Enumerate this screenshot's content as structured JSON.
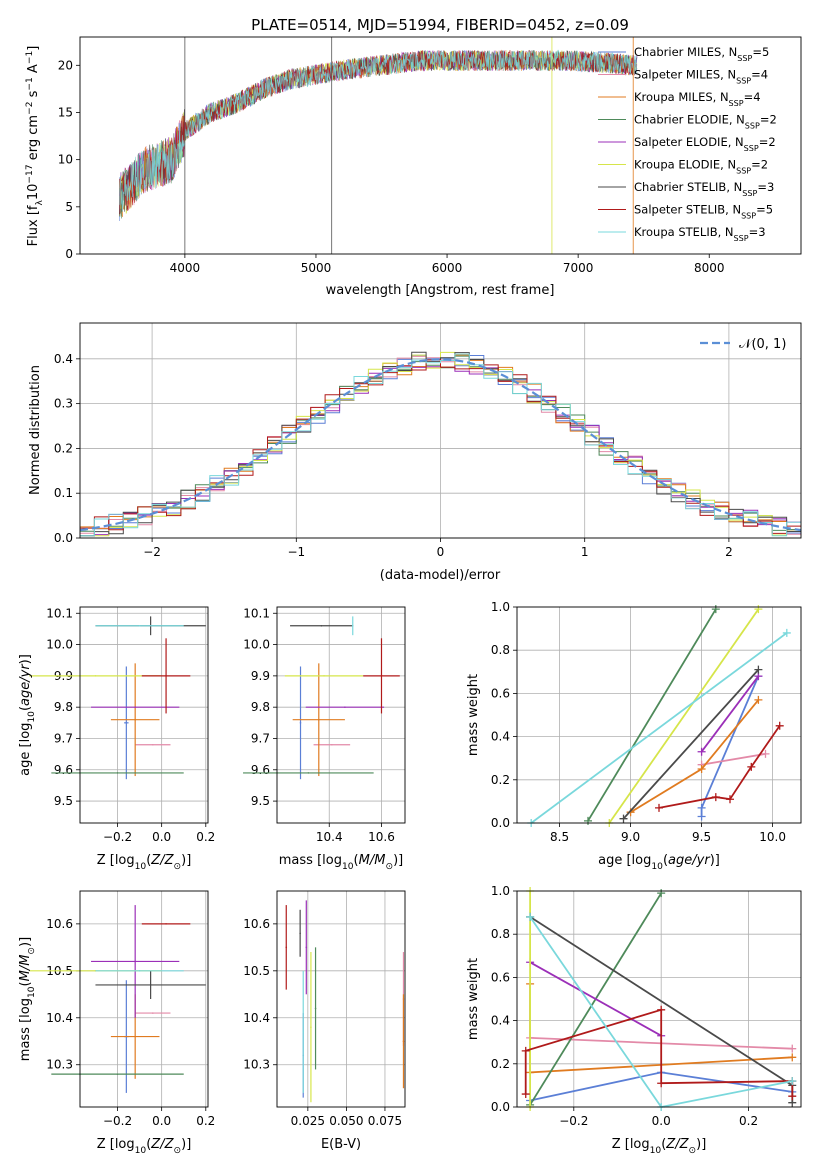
{
  "title": "PLATE=0514, MJD=51994, FIBERID=0452, z=0.09",
  "series": [
    {
      "name": "Chabrier MILES, N_SSP=5",
      "color": "#5b7fd6"
    },
    {
      "name": "Salpeter MILES, N_SSP=4",
      "color": "#e38aa8"
    },
    {
      "name": "Kroupa MILES, N_SSP=4",
      "color": "#e07b20"
    },
    {
      "name": "Chabrier ELODIE, N_SSP=2",
      "color": "#4e8a5a"
    },
    {
      "name": "Salpeter ELODIE, N_SSP=2",
      "color": "#9b2fb8"
    },
    {
      "name": "Kroupa ELODIE, N_SSP=2",
      "color": "#d6e54a"
    },
    {
      "name": "Chabrier STELIB, N_SSP=3",
      "color": "#4a4a4a"
    },
    {
      "name": "Salpeter STELIB, N_SSP=5",
      "color": "#b01a1a"
    },
    {
      "name": "Kroupa STELIB, N_SSP=3",
      "color": "#7ad8dc"
    }
  ],
  "chart_data": [
    {
      "type": "line",
      "panel": "spectrum",
      "xlabel": "wavelength [Angstrom, rest frame]",
      "ylabel": "Flux [fλ10^-17 erg cm^-2 s^-1 A^-1]",
      "xlim": [
        3200,
        8700
      ],
      "ylim": [
        0,
        23
      ],
      "xticks": [
        "4000",
        "5000",
        "6000",
        "7000",
        "8000"
      ],
      "yticks": [
        "0",
        "5",
        "10",
        "15",
        "20"
      ],
      "x": [
        3500,
        3700,
        3900,
        4000,
        4200,
        4400,
        4600,
        4800,
        5000,
        5200,
        5500,
        5800,
        6000,
        6300,
        6600,
        6900,
        7200,
        7400
      ],
      "y": [
        6,
        9,
        10,
        13,
        15,
        16,
        17.5,
        18.5,
        19,
        19.5,
        20,
        20.5,
        20.5,
        20.5,
        20.5,
        20.5,
        20.3,
        20
      ],
      "spikes_x": [
        4000,
        5120,
        6800,
        7420
      ],
      "legend_position": "upper right",
      "grid": false
    },
    {
      "type": "bar",
      "panel": "residual-histogram",
      "xlabel": "(data-model)/error",
      "ylabel": "Normed distribution",
      "xlim": [
        -2.5,
        2.5
      ],
      "ylim": [
        0,
        0.48
      ],
      "xticks": [
        "−2",
        "−1",
        "0",
        "1",
        "2"
      ],
      "yticks": [
        "0.0",
        "0.1",
        "0.2",
        "0.3",
        "0.4"
      ],
      "bin_edges_start": -2.5,
      "bin_width": 0.1,
      "reference_curve": "𝒩(0, 1)",
      "grid": true
    },
    {
      "type": "scatter",
      "panel": "age-vs-Z",
      "xlabel": "Z [log10(Z/Z⊙)]",
      "ylabel": "age [log10(age/yr)]",
      "xlim": [
        -0.37,
        0.21
      ],
      "ylim": [
        9.43,
        10.12
      ],
      "xticks": [
        "−0.2",
        "0.0",
        "0.2"
      ],
      "yticks": [
        "9.5",
        "9.6",
        "9.7",
        "9.8",
        "9.9",
        "10.0",
        "10.1"
      ],
      "points": [
        {
          "x": -0.16,
          "xerr": 0.01,
          "y": 9.75,
          "yerr": 0.18
        },
        {
          "x": -0.04,
          "xerr": 0.08,
          "y": 9.68,
          "yerr": 0.0
        },
        {
          "x": -0.12,
          "xerr": 0.11,
          "y": 9.76,
          "yerr": 0.18
        },
        {
          "x": -0.2,
          "xerr": 0.3,
          "y": 9.59,
          "yerr": 0.0
        },
        {
          "x": -0.12,
          "xerr": 0.2,
          "y": 9.8,
          "yerr": 0.0
        },
        {
          "x": -0.3,
          "xerr": 0.3,
          "y": 9.9,
          "yerr": 0.0
        },
        {
          "x": -0.05,
          "xerr": 0.25,
          "y": 10.06,
          "yerr": 0.03
        },
        {
          "x": 0.02,
          "xerr": 0.11,
          "y": 9.9,
          "yerr": 0.12
        },
        {
          "x": -0.1,
          "xerr": 0.2,
          "y": 10.06,
          "yerr": 0.0
        }
      ],
      "grid": true
    },
    {
      "type": "scatter",
      "panel": "age-vs-mass",
      "xlabel": "mass [log10(M/M⊙)]",
      "xlim": [
        10.2,
        10.69
      ],
      "ylim": [
        9.43,
        10.12
      ],
      "xticks": [
        "10.4",
        "10.6"
      ],
      "yticks": [
        "9.5",
        "9.6",
        "9.7",
        "9.8",
        "9.9",
        "10.0",
        "10.1"
      ],
      "points": [
        {
          "x": 10.29,
          "xerr": 0.0,
          "y": 9.75,
          "yerr": 0.18
        },
        {
          "x": 10.41,
          "xerr": 0.07,
          "y": 9.68,
          "yerr": 0.0
        },
        {
          "x": 10.36,
          "xerr": 0.1,
          "y": 9.76,
          "yerr": 0.18
        },
        {
          "x": 10.32,
          "xerr": 0.25,
          "y": 9.59,
          "yerr": 0.0
        },
        {
          "x": 10.46,
          "xerr": 0.15,
          "y": 9.8,
          "yerr": 0.0
        },
        {
          "x": 10.38,
          "xerr": 0.15,
          "y": 9.9,
          "yerr": 0.0
        },
        {
          "x": 10.37,
          "xerr": 0.12,
          "y": 10.06,
          "yerr": 0.0
        },
        {
          "x": 10.6,
          "xerr": 0.07,
          "y": 9.9,
          "yerr": 0.12
        },
        {
          "x": 10.49,
          "xerr": 0.0,
          "y": 10.06,
          "yerr": 0.03
        }
      ],
      "grid": true
    },
    {
      "type": "line",
      "panel": "mass-weight-vs-age",
      "xlabel": "age [log10(age/yr)]",
      "ylabel": "mass weight",
      "xlim": [
        8.2,
        10.2
      ],
      "ylim": [
        0,
        1
      ],
      "xticks": [
        "8.5",
        "9.0",
        "9.5",
        "10.0"
      ],
      "yticks": [
        "0.0",
        "0.2",
        "0.4",
        "0.6",
        "0.8",
        "1.0"
      ],
      "series": [
        {
          "x": [
            9.5,
            9.5,
            9.9
          ],
          "y": [
            0.03,
            0.07,
            0.68
          ]
        },
        {
          "x": [
            9.5,
            9.95
          ],
          "y": [
            0.27,
            0.32
          ]
        },
        {
          "x": [
            9.0,
            9.5,
            9.9
          ],
          "y": [
            0.05,
            0.25,
            0.57
          ]
        },
        {
          "x": [
            8.7,
            9.6
          ],
          "y": [
            0.01,
            0.99
          ]
        },
        {
          "x": [
            9.5,
            9.9
          ],
          "y": [
            0.33,
            0.68
          ]
        },
        {
          "x": [
            8.85,
            9.9
          ],
          "y": [
            0.0,
            0.99
          ]
        },
        {
          "x": [
            8.95,
            9.9
          ],
          "y": [
            0.02,
            0.71
          ]
        },
        {
          "x": [
            9.2,
            9.6,
            9.7,
            9.85,
            10.05
          ],
          "y": [
            0.07,
            0.12,
            0.11,
            0.26,
            0.45
          ]
        },
        {
          "x": [
            8.3,
            10.1
          ],
          "y": [
            0.0,
            0.88
          ]
        }
      ],
      "grid": true
    },
    {
      "type": "scatter",
      "panel": "mass-vs-Z",
      "xlabel": "Z [log10(Z/Z⊙)]",
      "ylabel": "mass [log10(M/M⊙)]",
      "xlim": [
        -0.37,
        0.21
      ],
      "ylim": [
        10.21,
        10.67
      ],
      "xticks": [
        "−0.2",
        "0.0",
        "0.2"
      ],
      "yticks": [
        "10.3",
        "10.4",
        "10.5",
        "10.6"
      ],
      "points": [
        {
          "x": -0.16,
          "xerr": 0.01,
          "y": 10.36,
          "yerr": 0.12
        },
        {
          "x": -0.04,
          "xerr": 0.08,
          "y": 10.41,
          "yerr": 0.0
        },
        {
          "x": -0.12,
          "xerr": 0.11,
          "y": 10.36,
          "yerr": 0.09
        },
        {
          "x": -0.2,
          "xerr": 0.3,
          "y": 10.28,
          "yerr": 0.0
        },
        {
          "x": -0.12,
          "xerr": 0.2,
          "y": 10.52,
          "yerr": 0.12
        },
        {
          "x": -0.3,
          "xerr": 0.3,
          "y": 10.5,
          "yerr": 0.0
        },
        {
          "x": -0.05,
          "xerr": 0.25,
          "y": 10.47,
          "yerr": 0.03
        },
        {
          "x": 0.02,
          "xerr": 0.11,
          "y": 10.6,
          "yerr": 0.0
        },
        {
          "x": -0.1,
          "xerr": 0.2,
          "y": 10.5,
          "yerr": 0.0
        }
      ],
      "grid": true
    },
    {
      "type": "scatter",
      "panel": "mass-vs-ebv",
      "xlabel": "E(B-V)",
      "xlim": [
        0.005,
        0.088
      ],
      "ylim": [
        10.21,
        10.67
      ],
      "xticks": [
        "0.025",
        "0.050",
        "0.075"
      ],
      "yticks": [
        "10.3",
        "10.4",
        "10.5",
        "10.6"
      ],
      "points": [
        {
          "x": 0.022,
          "y": 10.32,
          "yerr": 0.09
        },
        {
          "x": 0.087,
          "y": 10.44,
          "yerr": 0.1
        },
        {
          "x": 0.087,
          "y": 10.35,
          "yerr": 0.1
        },
        {
          "x": 0.03,
          "y": 10.42,
          "yerr": 0.13
        },
        {
          "x": 0.024,
          "y": 10.55,
          "yerr": 0.1
        },
        {
          "x": 0.027,
          "y": 10.38,
          "yerr": 0.16
        },
        {
          "x": 0.02,
          "y": 10.58,
          "yerr": 0.05
        },
        {
          "x": 0.011,
          "y": 10.55,
          "yerr": 0.09
        },
        {
          "x": 0.022,
          "y": 10.37,
          "yerr": 0.13
        }
      ],
      "grid": true
    },
    {
      "type": "line",
      "panel": "mass-weight-vs-Z",
      "xlabel": "Z [log10(Z/Z⊙)]",
      "ylabel": "mass weight",
      "xlim": [
        -0.33,
        0.32
      ],
      "ylim": [
        0,
        1
      ],
      "xticks": [
        "−0.2",
        "0.0",
        "0.2"
      ],
      "yticks": [
        "0.0",
        "0.2",
        "0.4",
        "0.6",
        "0.8",
        "1.0"
      ],
      "series": [
        {
          "x": [
            -0.3,
            0.0,
            0.3
          ],
          "y": [
            0.03,
            0.16,
            0.07
          ]
        },
        {
          "x": [
            -0.3,
            0.3
          ],
          "y": [
            0.32,
            0.27
          ]
        },
        {
          "x": [
            -0.3,
            -0.3,
            0.3
          ],
          "y": [
            0.57,
            0.16,
            0.23
          ]
        },
        {
          "x": [
            -0.3,
            0.0
          ],
          "y": [
            0.01,
            0.99
          ]
        },
        {
          "x": [
            -0.3,
            0.0
          ],
          "y": [
            0.67,
            0.33
          ]
        },
        {
          "x": [
            -0.3,
            -0.3
          ],
          "y": [
            0.0,
            1.0
          ]
        },
        {
          "x": [
            -0.3,
            0.3,
            0.3
          ],
          "y": [
            0.88,
            0.1,
            0.02
          ]
        },
        {
          "x": [
            -0.31,
            -0.31,
            0.0,
            0.0,
            0.3,
            0.3
          ],
          "y": [
            0.06,
            0.26,
            0.45,
            0.11,
            0.12,
            0.05
          ]
        },
        {
          "x": [
            -0.3,
            0.0,
            0.3
          ],
          "y": [
            0.88,
            0.0,
            0.12
          ]
        }
      ],
      "grid": true
    }
  ]
}
